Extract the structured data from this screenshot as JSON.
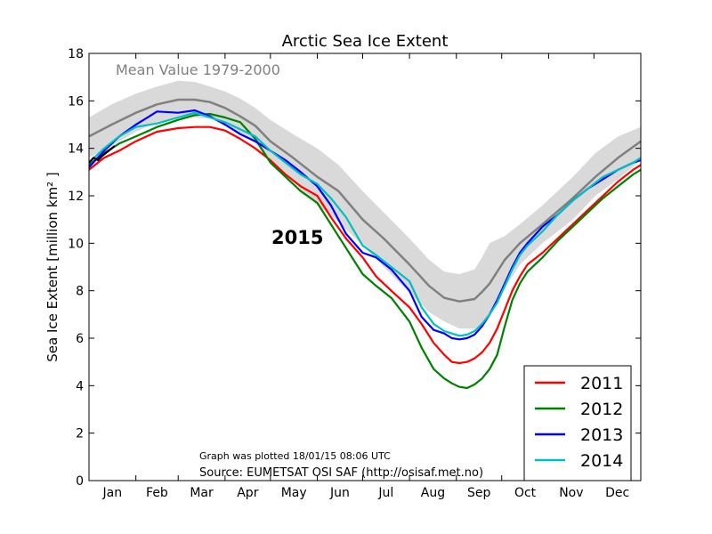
{
  "chart_data": {
    "type": "line",
    "title": "Arctic Sea Ice Extent",
    "ylabel": "Sea Ice Extent [million km² ]",
    "xlabel": "",
    "ylim": [
      0,
      18
    ],
    "xlim": [
      0,
      365
    ],
    "y_ticks": [
      "0",
      "2",
      "4",
      "6",
      "8",
      "10",
      "12",
      "14",
      "16",
      "18"
    ],
    "months": [
      "Jan",
      "Feb",
      "Mar",
      "Apr",
      "May",
      "Jun",
      "Jul",
      "Aug",
      "Sep",
      "Oct",
      "Nov",
      "Dec"
    ],
    "grid": false,
    "legend_placement": "bottom-right",
    "mean_label": "Mean Value 1979-2000",
    "year_label": "2015",
    "plotted_note": "Graph was plotted 18/01/15 08:06 UTC",
    "source": "Source: EUMETSAT OSI SAF (http://osisaf.met.no)",
    "mean": {
      "color": "#808080",
      "x": [
        0,
        15,
        31,
        45,
        59,
        70,
        80,
        90,
        100,
        110,
        120,
        135,
        151,
        165,
        181,
        195,
        212,
        225,
        235,
        245,
        255,
        260,
        265,
        275,
        285,
        300,
        320,
        335,
        350,
        365
      ],
      "y": [
        14.5,
        15.0,
        15.5,
        15.85,
        16.05,
        16.05,
        15.95,
        15.7,
        15.35,
        14.95,
        14.3,
        13.6,
        12.8,
        12.2,
        11.0,
        10.2,
        9.1,
        8.2,
        7.7,
        7.55,
        7.65,
        7.95,
        8.3,
        9.3,
        10.0,
        10.8,
        11.9,
        12.8,
        13.6,
        14.3
      ]
    },
    "band": {
      "color": "#d9d9d9",
      "x": [
        0,
        15,
        31,
        45,
        59,
        70,
        80,
        90,
        100,
        110,
        120,
        135,
        151,
        165,
        181,
        195,
        212,
        225,
        235,
        245,
        255,
        260,
        265,
        275,
        285,
        300,
        320,
        335,
        350,
        365
      ],
      "upper": [
        15.3,
        15.85,
        16.3,
        16.6,
        16.85,
        16.8,
        16.6,
        16.4,
        16.1,
        15.7,
        15.2,
        14.6,
        14.0,
        13.3,
        12.2,
        11.3,
        10.2,
        9.3,
        8.8,
        8.7,
        8.9,
        9.4,
        10.0,
        10.3,
        10.8,
        11.6,
        12.8,
        13.8,
        14.5,
        14.9
      ],
      "lower": [
        13.6,
        14.1,
        14.7,
        15.1,
        15.3,
        15.3,
        15.25,
        15.0,
        14.6,
        14.2,
        13.4,
        12.6,
        11.6,
        10.9,
        9.9,
        9.0,
        7.9,
        7.1,
        6.7,
        6.4,
        6.4,
        6.6,
        6.9,
        8.1,
        9.1,
        10.0,
        11.0,
        12.0,
        12.7,
        13.5
      ]
    },
    "series": [
      {
        "name": "2011",
        "color": "#ff0000",
        "x": [
          0,
          10,
          20,
          31,
          45,
          59,
          70,
          80,
          90,
          100,
          110,
          120,
          130,
          140,
          151,
          160,
          170,
          181,
          190,
          200,
          212,
          220,
          228,
          235,
          240,
          245,
          250,
          255,
          260,
          265,
          270,
          275,
          280,
          285,
          290,
          300,
          310,
          320,
          330,
          340,
          350,
          360,
          365
        ],
        "y": [
          13.1,
          13.6,
          13.9,
          14.3,
          14.7,
          14.85,
          14.9,
          14.9,
          14.75,
          14.4,
          14.0,
          13.5,
          12.9,
          12.4,
          12.0,
          11.1,
          10.2,
          9.4,
          8.6,
          8.0,
          7.3,
          6.6,
          5.8,
          5.3,
          5.0,
          4.95,
          5.0,
          5.15,
          5.4,
          5.8,
          6.4,
          7.2,
          8.0,
          8.6,
          9.1,
          9.6,
          10.2,
          10.8,
          11.4,
          12.0,
          12.6,
          13.1,
          13.3
        ]
      },
      {
        "name": "2012",
        "color": "#008000",
        "x": [
          0,
          10,
          20,
          31,
          45,
          59,
          70,
          80,
          90,
          100,
          110,
          120,
          130,
          140,
          151,
          160,
          170,
          181,
          190,
          200,
          212,
          220,
          228,
          235,
          240,
          245,
          250,
          255,
          260,
          265,
          270,
          275,
          280,
          285,
          290,
          300,
          310,
          320,
          330,
          340,
          350,
          360,
          365
        ],
        "y": [
          13.3,
          13.8,
          14.2,
          14.5,
          14.9,
          15.2,
          15.4,
          15.45,
          15.3,
          15.1,
          14.4,
          13.4,
          12.8,
          12.2,
          11.7,
          10.8,
          9.8,
          8.7,
          8.2,
          7.7,
          6.7,
          5.6,
          4.7,
          4.3,
          4.1,
          3.95,
          3.9,
          4.05,
          4.3,
          4.7,
          5.3,
          6.5,
          7.6,
          8.3,
          8.8,
          9.4,
          10.1,
          10.7,
          11.3,
          11.9,
          12.4,
          12.9,
          13.1
        ]
      },
      {
        "name": "2013",
        "color": "#0000ff",
        "x": [
          0,
          10,
          20,
          31,
          40,
          45,
          59,
          70,
          80,
          90,
          100,
          110,
          120,
          130,
          140,
          151,
          160,
          170,
          181,
          190,
          200,
          212,
          220,
          228,
          235,
          240,
          245,
          250,
          255,
          260,
          265,
          270,
          275,
          280,
          285,
          290,
          300,
          310,
          320,
          330,
          340,
          350,
          360,
          365
        ],
        "y": [
          13.2,
          13.9,
          14.5,
          15.0,
          15.35,
          15.55,
          15.5,
          15.6,
          15.35,
          15.0,
          14.6,
          14.3,
          13.9,
          13.5,
          13.0,
          12.4,
          11.6,
          10.4,
          9.6,
          9.4,
          8.9,
          8.0,
          6.9,
          6.35,
          6.2,
          6.0,
          5.95,
          6.0,
          6.15,
          6.5,
          7.0,
          7.6,
          8.3,
          9.0,
          9.6,
          10.0,
          10.7,
          11.2,
          11.8,
          12.3,
          12.7,
          13.1,
          13.4,
          13.5
        ]
      },
      {
        "name": "2014",
        "color": "#00bfbf",
        "x": [
          0,
          10,
          20,
          31,
          45,
          59,
          70,
          80,
          90,
          100,
          110,
          120,
          130,
          140,
          151,
          160,
          170,
          181,
          190,
          200,
          212,
          220,
          228,
          235,
          240,
          245,
          250,
          255,
          260,
          265,
          270,
          275,
          280,
          285,
          290,
          300,
          310,
          320,
          330,
          340,
          350,
          360,
          365
        ],
        "y": [
          13.4,
          14.0,
          14.5,
          14.9,
          15.05,
          15.3,
          15.5,
          15.3,
          15.1,
          14.8,
          14.5,
          13.9,
          13.4,
          12.9,
          12.5,
          11.9,
          11.1,
          9.9,
          9.5,
          9.0,
          8.4,
          7.3,
          6.6,
          6.3,
          6.2,
          6.1,
          6.15,
          6.3,
          6.6,
          7.0,
          7.5,
          8.2,
          8.9,
          9.5,
          9.9,
          10.5,
          11.2,
          11.8,
          12.3,
          12.8,
          13.1,
          13.4,
          13.6
        ]
      },
      {
        "name": "2015",
        "color": "#000000",
        "x": [
          0,
          3,
          6,
          9,
          12,
          15,
          17
        ],
        "y": [
          13.4,
          13.6,
          13.5,
          13.7,
          13.85,
          14.0,
          14.1
        ]
      }
    ]
  }
}
